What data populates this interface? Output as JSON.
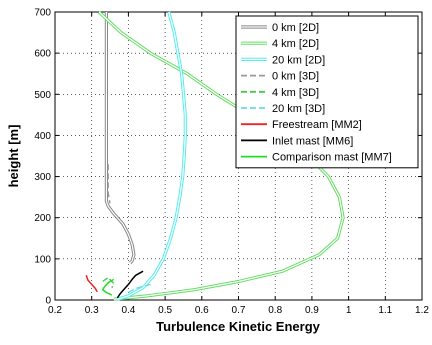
{
  "chart_data": {
    "type": "line",
    "xlabel": "Turbulence Kinetic Energy",
    "ylabel": "height [m]",
    "xlim": [
      0.2,
      1.2
    ],
    "ylim": [
      0,
      700
    ],
    "xticks": [
      "0.2",
      "0.3",
      "0.4",
      "0.5",
      "0.6",
      "0.7",
      "0.8",
      "0.9",
      "1",
      "1.1",
      "1.2"
    ],
    "yticks": [
      "0",
      "100",
      "200",
      "300",
      "400",
      "500",
      "600",
      "700"
    ],
    "grid": true,
    "legend_position": "top-right",
    "series": [
      {
        "name": "0 km [2D]",
        "color": "#888888",
        "style": "solid",
        "double": true,
        "points": [
          [
            0.34,
            700
          ],
          [
            0.34,
            600
          ],
          [
            0.34,
            500
          ],
          [
            0.34,
            400
          ],
          [
            0.34,
            320
          ],
          [
            0.34,
            240
          ],
          [
            0.345,
            228
          ],
          [
            0.36,
            210
          ],
          [
            0.385,
            185
          ],
          [
            0.4,
            160
          ],
          [
            0.41,
            135
          ],
          [
            0.415,
            110
          ],
          [
            0.41,
            95
          ],
          [
            0.405,
            90
          ]
        ]
      },
      {
        "name": "4 km [2D]",
        "color": "#66dd66",
        "style": "solid",
        "double": true,
        "points": [
          [
            0.32,
            700
          ],
          [
            0.38,
            650
          ],
          [
            0.46,
            600
          ],
          [
            0.56,
            550
          ],
          [
            0.64,
            500
          ],
          [
            0.73,
            450
          ],
          [
            0.82,
            400
          ],
          [
            0.89,
            350
          ],
          [
            0.945,
            300
          ],
          [
            0.975,
            250
          ],
          [
            0.985,
            200
          ],
          [
            0.97,
            150
          ],
          [
            0.92,
            110
          ],
          [
            0.82,
            70
          ],
          [
            0.7,
            45
          ],
          [
            0.58,
            25
          ],
          [
            0.45,
            10
          ],
          [
            0.36,
            2
          ]
        ]
      },
      {
        "name": "20 km [2D]",
        "color": "#55eeee",
        "style": "solid",
        "double": true,
        "points": [
          [
            0.51,
            700
          ],
          [
            0.525,
            650
          ],
          [
            0.535,
            600
          ],
          [
            0.545,
            550
          ],
          [
            0.55,
            500
          ],
          [
            0.555,
            450
          ],
          [
            0.555,
            400
          ],
          [
            0.552,
            350
          ],
          [
            0.548,
            300
          ],
          [
            0.54,
            250
          ],
          [
            0.53,
            200
          ],
          [
            0.515,
            150
          ],
          [
            0.495,
            100
          ],
          [
            0.47,
            60
          ],
          [
            0.44,
            30
          ],
          [
            0.4,
            10
          ],
          [
            0.37,
            2
          ]
        ]
      },
      {
        "name": "0 km [3D]",
        "color": "#999999",
        "style": "dashed",
        "points": [
          [
            0.345,
            330
          ],
          [
            0.345,
            290
          ],
          [
            0.345,
            260
          ],
          [
            0.35,
            235
          ]
        ]
      },
      {
        "name": "4 km [3D]",
        "color": "#44cc44",
        "style": "dashed",
        "points": [
          [
            0.33,
            45
          ],
          [
            0.345,
            55
          ],
          [
            0.36,
            40
          ],
          [
            0.355,
            30
          ]
        ]
      },
      {
        "name": "20 km [3D]",
        "color": "#66dddd",
        "style": "dashed",
        "points": [
          [
            0.4,
            18
          ],
          [
            0.42,
            28
          ],
          [
            0.46,
            38
          ]
        ]
      },
      {
        "name": "Freestream [MM2]",
        "color": "#ee2222",
        "style": "solid",
        "points": [
          [
            0.285,
            60
          ],
          [
            0.29,
            48
          ],
          [
            0.3,
            38
          ],
          [
            0.31,
            28
          ],
          [
            0.315,
            20
          ]
        ]
      },
      {
        "name": "Inlet mast [MM6]",
        "color": "#000000",
        "style": "solid",
        "points": [
          [
            0.44,
            70
          ],
          [
            0.42,
            60
          ],
          [
            0.41,
            50
          ],
          [
            0.4,
            38
          ],
          [
            0.39,
            28
          ],
          [
            0.38,
            18
          ],
          [
            0.375,
            12
          ],
          [
            0.37,
            5
          ]
        ]
      },
      {
        "name": "Comparison mast [MM7]",
        "color": "#22dd22",
        "style": "solid",
        "points": [
          [
            0.36,
            50
          ],
          [
            0.345,
            42
          ],
          [
            0.335,
            32
          ],
          [
            0.33,
            25
          ],
          [
            0.34,
            18
          ],
          [
            0.355,
            12
          ]
        ]
      }
    ]
  }
}
